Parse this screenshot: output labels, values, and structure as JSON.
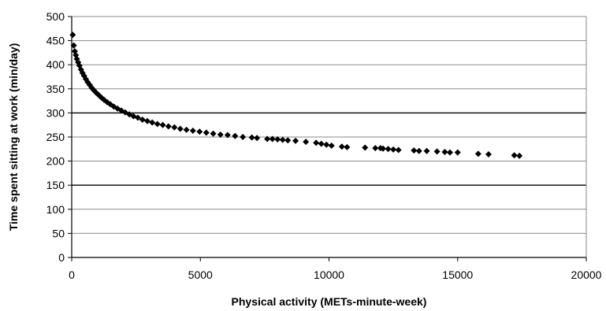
{
  "chart_data": {
    "type": "scatter",
    "title": "",
    "xlabel": "Physical activity (METs-minute-week)",
    "ylabel": "Time spent sitting at work (min/day)",
    "xlim": [
      0,
      20000
    ],
    "ylim": [
      0,
      500
    ],
    "xticks": [
      0,
      5000,
      10000,
      15000,
      20000
    ],
    "yticks": [
      0,
      50,
      100,
      150,
      200,
      250,
      300,
      350,
      400,
      450,
      500
    ],
    "xtick_labels": [
      "0",
      "5000",
      "10000",
      "15000",
      "20000"
    ],
    "ytick_labels": [
      "0",
      "50",
      "100",
      "150",
      "200",
      "250",
      "300",
      "350",
      "400",
      "450",
      "500"
    ],
    "grid": true,
    "legend": "none",
    "marker": "diamond",
    "marker_color": "#000000",
    "emphasized_gridlines_y": [
      150,
      300
    ],
    "series": [
      {
        "x": [
          40,
          80,
          120,
          160,
          200,
          250,
          300,
          360,
          420,
          480,
          550,
          620,
          700,
          780,
          860,
          950,
          1050,
          1150,
          1260,
          1380,
          1500,
          1640,
          1780,
          1930,
          2080,
          2240,
          2400,
          2570,
          2750,
          2940,
          3130,
          3330,
          3540,
          3760,
          3990,
          4220,
          4460,
          4710,
          4970,
          5230,
          5500,
          5780,
          6060,
          6350,
          6650,
          7000,
          7200,
          7600,
          7800,
          8000,
          8200,
          8400,
          8700,
          9100,
          9500,
          9700,
          9900,
          10100,
          10500,
          10700,
          11400,
          11800,
          12000,
          12100,
          12300,
          12500,
          12700,
          13300,
          13500,
          13800,
          14200,
          14500,
          14700,
          15000,
          15800,
          16200,
          17200,
          17400
        ],
        "y": [
          462,
          440,
          428,
          420,
          412,
          405,
          398,
          390,
          383,
          377,
          370,
          364,
          358,
          352,
          347,
          342,
          337,
          332,
          327,
          322,
          318,
          313,
          309,
          305,
          301,
          297,
          293,
          290,
          286,
          283,
          280,
          277,
          275,
          272,
          270,
          267,
          265,
          263,
          261,
          259,
          257,
          255,
          254,
          252,
          250,
          249,
          248,
          246,
          246,
          245,
          244,
          243,
          242,
          240,
          238,
          236,
          234,
          232,
          230,
          229,
          228,
          227,
          227,
          226,
          225,
          224,
          223,
          222,
          221,
          221,
          220,
          219,
          218,
          218,
          215,
          214,
          212,
          211
        ]
      }
    ]
  }
}
